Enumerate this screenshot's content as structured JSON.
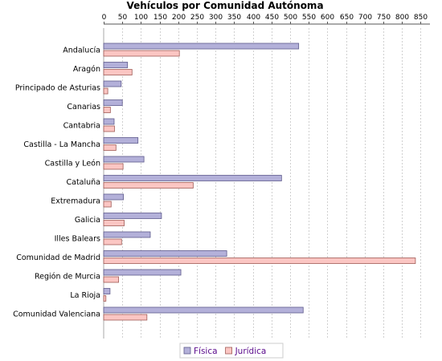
{
  "chart_data": {
    "type": "bar",
    "orientation": "horizontal",
    "title": "Vehículos por Comunidad Autónoma",
    "xlabel": "",
    "ylabel": "",
    "xlim": [
      0,
      875
    ],
    "xticks": [
      0,
      50,
      100,
      150,
      200,
      250,
      300,
      350,
      400,
      450,
      500,
      550,
      600,
      650,
      700,
      750,
      800,
      850
    ],
    "axis_position": "top",
    "grid": "vertical dashed",
    "legend_placement": "bottom-center",
    "categories": [
      "Andalucía",
      "Aragón",
      "Principado de Asturias",
      "Canarias",
      "Cantabria",
      "Castilla - La Mancha",
      "Castilla y León",
      "Cataluña",
      "Extremadura",
      "Galicia",
      "Illes Balears",
      "Comunidad de Madrid",
      "Región de Murcia",
      "La Rioja",
      "Comunidad Valenciana"
    ],
    "series": [
      {
        "name": "Física",
        "color": "#b3b0d9",
        "stroke": "#5e5a8c",
        "values": [
          523,
          64,
          47,
          50,
          28,
          92,
          108,
          477,
          53,
          155,
          125,
          330,
          207,
          17,
          535
        ]
      },
      {
        "name": "Jurídica",
        "color": "#fbc6c3",
        "stroke": "#a05a55",
        "values": [
          203,
          76,
          11,
          18,
          29,
          33,
          52,
          240,
          20,
          55,
          48,
          836,
          40,
          6,
          116
        ]
      }
    ]
  },
  "legend_text_color": "#5a0a8c"
}
